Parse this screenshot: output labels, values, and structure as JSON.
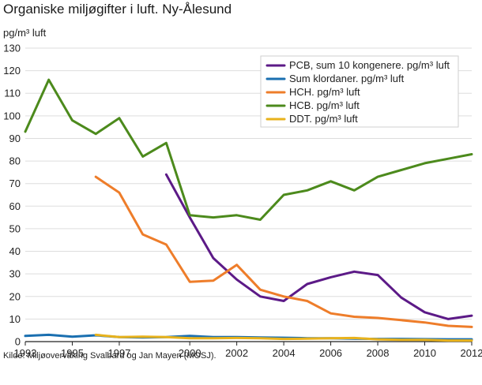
{
  "chart_data": {
    "type": "line",
    "title": "Organiske miljøgifter i luft. Ny-Ålesund",
    "ylabel": "pg/m³ luft",
    "xlabel": "",
    "source": "Kilde: Miljøovervåking Svalbard og Jan Mayen (MOSJ).",
    "xlim": [
      1993,
      2012
    ],
    "ylim": [
      0,
      130
    ],
    "x_ticks": [
      1993,
      1995,
      1997,
      2000,
      2002,
      2004,
      2006,
      2008,
      2010,
      2012
    ],
    "y_ticks": [
      0,
      10,
      20,
      30,
      40,
      50,
      60,
      70,
      80,
      90,
      100,
      110,
      120,
      130
    ],
    "grid": true,
    "legend_position": "top-right",
    "series": [
      {
        "name": "PCB, sum 10 kongenere. pg/m³ luft",
        "color": "#5c1a87",
        "x": [
          1999,
          2000,
          2001,
          2002,
          2003,
          2004,
          2005,
          2006,
          2007,
          2008,
          2009,
          2010,
          2011,
          2012
        ],
        "values": [
          74,
          55,
          37,
          27.5,
          20,
          18,
          25.5,
          28.5,
          31,
          29.5,
          19.5,
          13,
          10,
          11.5
        ]
      },
      {
        "name": "Sum klordaner. pg/m³ luft",
        "color": "#1a6fb0",
        "x": [
          1993,
          1994,
          1995,
          1996,
          1997,
          1998,
          1999,
          2000,
          2001,
          2002,
          2003,
          2004,
          2005,
          2006,
          2007,
          2008,
          2009,
          2010,
          2011,
          2012
        ],
        "values": [
          2.5,
          3,
          2.2,
          2.8,
          2,
          1.8,
          2,
          2.5,
          2,
          2,
          1.8,
          1.7,
          1.5,
          1.5,
          1.3,
          1.2,
          1.2,
          1.1,
          1,
          1
        ]
      },
      {
        "name": "HCH. pg/m³ luft",
        "color": "#ee7d2a",
        "x": [
          1996,
          1997,
          1998,
          1999,
          2000,
          2001,
          2002,
          2003,
          2004,
          2005,
          2006,
          2007,
          2008,
          2009,
          2010,
          2011,
          2012
        ],
        "values": [
          73,
          66,
          47.5,
          43,
          26.5,
          27,
          34,
          23,
          20,
          18,
          12.5,
          11,
          10.5,
          9.5,
          8.5,
          7,
          6.5
        ]
      },
      {
        "name": "HCB. pg/m³ luft",
        "color": "#4c8a1c",
        "x": [
          1993,
          1994,
          1995,
          1996,
          1997,
          1998,
          1999,
          2000,
          2001,
          2002,
          2003,
          2004,
          2005,
          2006,
          2007,
          2008,
          2009,
          2010,
          2011,
          2012
        ],
        "values": [
          93,
          116,
          98,
          92,
          99,
          82,
          88,
          56,
          55,
          56,
          54,
          65,
          67,
          71,
          67,
          73,
          76,
          79,
          81,
          83
        ]
      },
      {
        "name": "DDT. pg/m³ luft",
        "color": "#e8b21c",
        "x": [
          1996,
          1997,
          1998,
          1999,
          2000,
          2001,
          2002,
          2003,
          2004,
          2005,
          2006,
          2007,
          2008,
          2009,
          2010,
          2011,
          2012
        ],
        "values": [
          3,
          2,
          2.2,
          2,
          1.5,
          1.5,
          1.6,
          1.5,
          1.2,
          1.3,
          1.5,
          1.6,
          1,
          0.8,
          0.8,
          0.5,
          0.5
        ]
      }
    ]
  }
}
